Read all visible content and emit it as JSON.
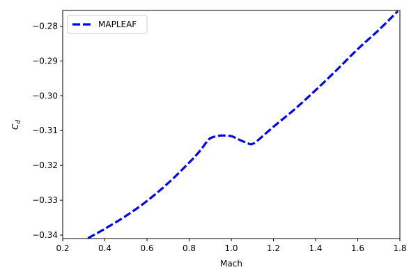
{
  "chart_data": {
    "type": "line",
    "title": "",
    "xlabel": "Mach",
    "ylabel_main": "C",
    "ylabel_sub": "d",
    "xlim": [
      0.2,
      1.8
    ],
    "ylim": [
      -0.341,
      -0.2755
    ],
    "xticks": [
      0.2,
      0.4,
      0.6,
      0.8,
      1.0,
      1.2,
      1.4,
      1.6,
      1.8
    ],
    "xtick_labels": [
      "0.2",
      "0.4",
      "0.6",
      "0.8",
      "1.0",
      "1.2",
      "1.4",
      "1.6",
      "1.8"
    ],
    "yticks": [
      -0.34,
      -0.33,
      -0.32,
      -0.31,
      -0.3,
      -0.29,
      -0.28
    ],
    "ytick_labels": [
      "−0.34",
      "−0.33",
      "−0.32",
      "−0.31",
      "−0.30",
      "−0.29",
      "−0.28"
    ],
    "grid": false,
    "legend_position": "top-left",
    "series": [
      {
        "name": "MAPLEAF",
        "color": "#0000ff",
        "style": "dashed",
        "x": [
          0.32,
          0.4,
          0.5,
          0.6,
          0.7,
          0.8,
          0.85,
          0.88,
          0.9,
          0.93,
          0.96,
          1.0,
          1.03,
          1.06,
          1.09,
          1.1,
          1.12,
          1.2,
          1.3,
          1.4,
          1.5,
          1.6,
          1.7,
          1.79
        ],
        "y": [
          -0.3409,
          -0.3382,
          -0.3345,
          -0.3302,
          -0.3251,
          -0.3192,
          -0.3159,
          -0.3135,
          -0.3122,
          -0.3116,
          -0.3114,
          -0.3116,
          -0.3124,
          -0.3132,
          -0.3139,
          -0.3138,
          -0.3131,
          -0.3089,
          -0.3039,
          -0.2984,
          -0.2926,
          -0.2866,
          -0.2811,
          -0.2757
        ]
      }
    ]
  }
}
